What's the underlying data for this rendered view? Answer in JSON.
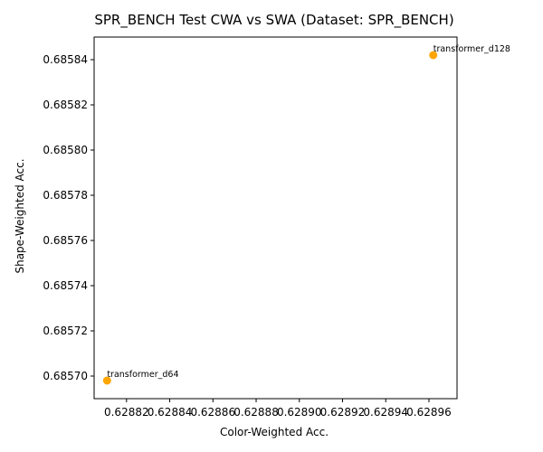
{
  "chart_data": {
    "type": "scatter",
    "title": "SPR_BENCH Test CWA vs SWA (Dataset: SPR_BENCH)",
    "xlabel": "Color-Weighted Acc.",
    "ylabel": "Shape-Weighted Acc.",
    "xlim": [
      0.628805,
      0.628973
    ],
    "ylim": [
      0.68569,
      0.68585
    ],
    "xticks": [
      0.62882,
      0.62884,
      0.62886,
      0.62888,
      0.6289,
      0.62892,
      0.62894,
      0.62896
    ],
    "xtick_labels": [
      "0.62882",
      "0.62884",
      "0.62886",
      "0.62888",
      "0.62890",
      "0.62892",
      "0.62894",
      "0.62896"
    ],
    "yticks": [
      0.6857,
      0.68572,
      0.68574,
      0.68576,
      0.68578,
      0.6858,
      0.68582,
      0.68584
    ],
    "ytick_labels": [
      "0.68570",
      "0.68572",
      "0.68574",
      "0.68576",
      "0.68578",
      "0.68580",
      "0.68582",
      "0.68584"
    ],
    "grid": false,
    "marker_color": "#ffa500",
    "points": [
      {
        "label": "transformer_d64",
        "x": 0.628811,
        "y": 0.685698
      },
      {
        "label": "transformer_d128",
        "x": 0.628962,
        "y": 0.685842
      }
    ]
  }
}
